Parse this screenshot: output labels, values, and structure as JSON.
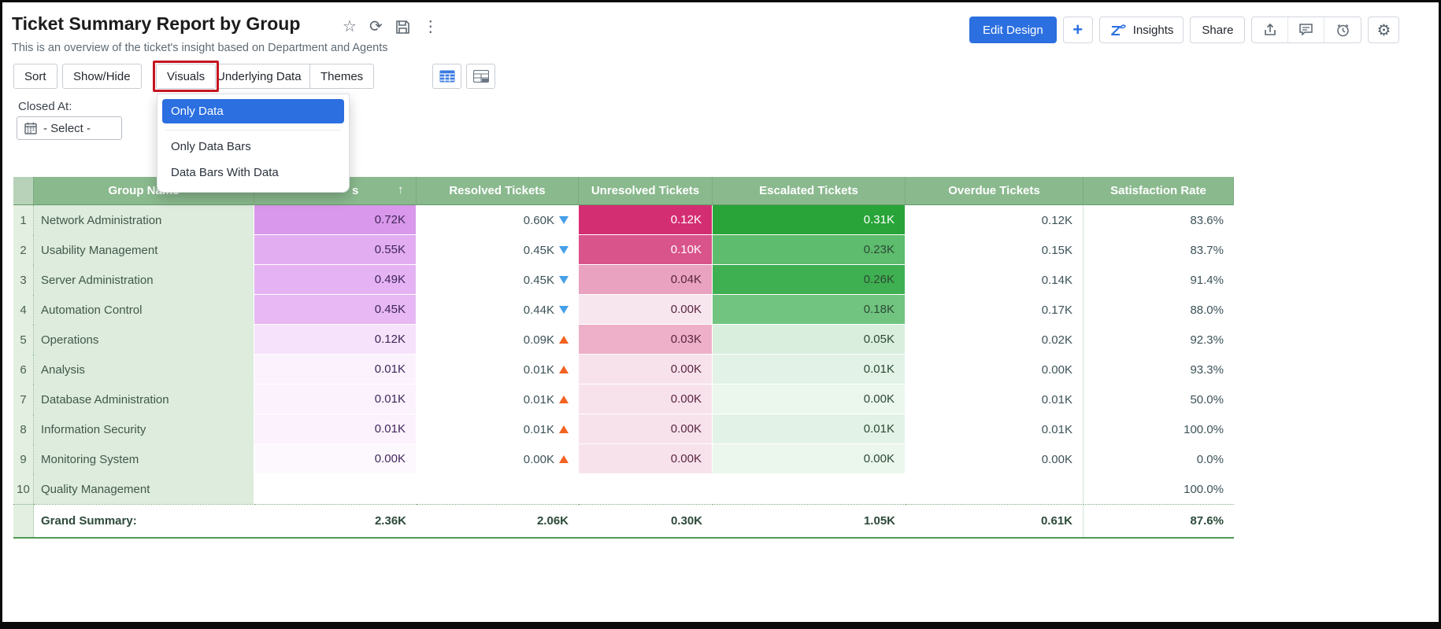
{
  "page": {
    "title": "Ticket Summary Report by Group",
    "subtitle": "This is an overview of the ticket's insight based on Department and Agents"
  },
  "title_icons": {
    "star": "☆",
    "refresh": "⟳",
    "more": "⋮"
  },
  "top_actions": {
    "edit_design": "Edit Design",
    "add": "+",
    "insights": "Insights",
    "share": "Share",
    "gear": "⚙"
  },
  "toolbar": {
    "sort": "Sort",
    "show_hide": "Show/Hide",
    "visuals": "Visuals",
    "underlying_data": "Underlying Data",
    "themes": "Themes"
  },
  "filter": {
    "label": "Closed At:",
    "value": "- Select -"
  },
  "visuals_menu": {
    "selected_color": "#2b6fe0",
    "items": [
      {
        "label": "Only Data",
        "selected": true
      },
      {
        "label": "Only Data Bars",
        "selected": false
      },
      {
        "label": "Data Bars With Data",
        "selected": false
      }
    ]
  },
  "table": {
    "group_header": "Group Name",
    "metric_header_visible_suffix": "s",
    "sort_arrow": "↑",
    "columns": [
      "Resolved Tickets",
      "Unresolved Tickets",
      "Escalated Tickets",
      "Overdue Tickets",
      "Satisfaction Rate"
    ],
    "rows": [
      {
        "n": "1",
        "group": "Network Administration",
        "tickets": {
          "v": "0.72K",
          "bg": "#d998eb",
          "fg": "#40265a"
        },
        "resolved": {
          "v": "0.60K",
          "arrow": "down"
        },
        "unresolved": {
          "v": "0.12K",
          "bg": "#d42e72",
          "fg": "#ffffff"
        },
        "escalated": {
          "v": "0.31K",
          "bg": "#28a438",
          "fg": "#ffffff"
        },
        "overdue": "0.12K",
        "satisfaction": "83.6%"
      },
      {
        "n": "2",
        "group": "Usability Management",
        "tickets": {
          "v": "0.55K",
          "bg": "#e2adf1",
          "fg": "#40265a"
        },
        "resolved": {
          "v": "0.45K",
          "arrow": "down"
        },
        "unresolved": {
          "v": "0.10K",
          "bg": "#d9548b",
          "fg": "#ffffff"
        },
        "escalated": {
          "v": "0.23K",
          "bg": "#5dbc6d",
          "fg": "#2c4a34"
        },
        "overdue": "0.15K",
        "satisfaction": "83.7%"
      },
      {
        "n": "3",
        "group": "Server Administration",
        "tickets": {
          "v": "0.49K",
          "bg": "#e5b3f3",
          "fg": "#40265a"
        },
        "resolved": {
          "v": "0.45K",
          "arrow": "down"
        },
        "unresolved": {
          "v": "0.04K",
          "bg": "#e9a2c0",
          "fg": "#5a2540"
        },
        "escalated": {
          "v": "0.26K",
          "bg": "#3fb051",
          "fg": "#2c4a34"
        },
        "overdue": "0.14K",
        "satisfaction": "91.4%"
      },
      {
        "n": "4",
        "group": "Automation Control",
        "tickets": {
          "v": "0.45K",
          "bg": "#e7b8f4",
          "fg": "#40265a"
        },
        "resolved": {
          "v": "0.44K",
          "arrow": "down"
        },
        "unresolved": {
          "v": "0.00K",
          "bg": "#f8e6ef",
          "fg": "#5a2540"
        },
        "escalated": {
          "v": "0.18K",
          "bg": "#71c480",
          "fg": "#2c4a34"
        },
        "overdue": "0.17K",
        "satisfaction": "88.0%"
      },
      {
        "n": "5",
        "group": "Operations",
        "tickets": {
          "v": "0.12K",
          "bg": "#f6e2fa",
          "fg": "#40265a"
        },
        "resolved": {
          "v": "0.09K",
          "arrow": "up"
        },
        "unresolved": {
          "v": "0.03K",
          "bg": "#edb0c8",
          "fg": "#5a2540"
        },
        "escalated": {
          "v": "0.05K",
          "bg": "#d9eedd",
          "fg": "#2c4a34"
        },
        "overdue": "0.02K",
        "satisfaction": "92.3%"
      },
      {
        "n": "6",
        "group": "Analysis",
        "tickets": {
          "v": "0.01K",
          "bg": "#fbf2fd",
          "fg": "#40265a"
        },
        "resolved": {
          "v": "0.01K",
          "arrow": "up"
        },
        "unresolved": {
          "v": "0.00K",
          "bg": "#f7e2ec",
          "fg": "#5a2540"
        },
        "escalated": {
          "v": "0.01K",
          "bg": "#e3f2e6",
          "fg": "#2c4a34"
        },
        "overdue": "0.00K",
        "satisfaction": "93.3%"
      },
      {
        "n": "7",
        "group": "Database Administration",
        "tickets": {
          "v": "0.01K",
          "bg": "#fbf2fd",
          "fg": "#40265a"
        },
        "resolved": {
          "v": "0.01K",
          "arrow": "up"
        },
        "unresolved": {
          "v": "0.00K",
          "bg": "#f7e2ec",
          "fg": "#5a2540"
        },
        "escalated": {
          "v": "0.00K",
          "bg": "#ebf6ed",
          "fg": "#2c4a34"
        },
        "overdue": "0.01K",
        "satisfaction": "50.0%"
      },
      {
        "n": "8",
        "group": "Information Security",
        "tickets": {
          "v": "0.01K",
          "bg": "#fbf2fd",
          "fg": "#40265a"
        },
        "resolved": {
          "v": "0.01K",
          "arrow": "up"
        },
        "unresolved": {
          "v": "0.00K",
          "bg": "#f7e2ec",
          "fg": "#5a2540"
        },
        "escalated": {
          "v": "0.01K",
          "bg": "#e3f2e6",
          "fg": "#2c4a34"
        },
        "overdue": "0.01K",
        "satisfaction": "100.0%"
      },
      {
        "n": "9",
        "group": "Monitoring System",
        "tickets": {
          "v": "0.00K",
          "bg": "#fdf8fe",
          "fg": "#40265a"
        },
        "resolved": {
          "v": "0.00K",
          "arrow": "up"
        },
        "unresolved": {
          "v": "0.00K",
          "bg": "#f7e2ec",
          "fg": "#5a2540"
        },
        "escalated": {
          "v": "0.00K",
          "bg": "#ebf6ed",
          "fg": "#2c4a34"
        },
        "overdue": "0.00K",
        "satisfaction": "0.0%"
      },
      {
        "n": "10",
        "group": "Quality Management",
        "tickets": {
          "v": "",
          "bg": ""
        },
        "resolved": {
          "v": "",
          "arrow": ""
        },
        "unresolved": {
          "v": "",
          "bg": ""
        },
        "escalated": {
          "v": "",
          "bg": ""
        },
        "overdue": "",
        "satisfaction": "100.0%"
      }
    ],
    "summary": {
      "label": "Grand Summary:",
      "tickets": "2.36K",
      "resolved": "2.06K",
      "unresolved": "0.30K",
      "escalated": "1.05K",
      "overdue": "0.61K",
      "satisfaction": "87.6%"
    }
  },
  "colors": {
    "header_green": "#8ab98e",
    "accent_blue": "#2b6fe0",
    "highlight_red": "#c41520",
    "arrow_down": "#46a0e8",
    "arrow_up": "#f26322"
  }
}
